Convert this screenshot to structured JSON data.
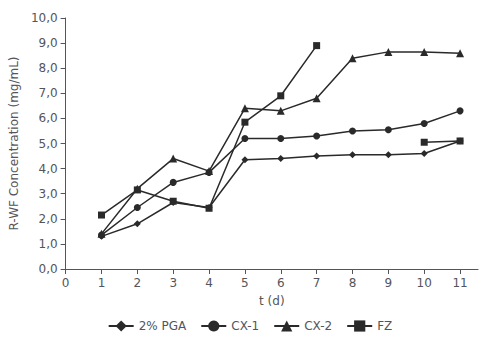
{
  "chart_data": {
    "type": "line",
    "x": [
      1,
      2,
      3,
      4,
      5,
      6,
      7,
      8,
      9,
      10,
      11
    ],
    "series": [
      {
        "name": "2% PGA",
        "color": "#2a2a2a",
        "marker": "diamond",
        "values": [
          1.3,
          1.8,
          2.65,
          2.45,
          4.35,
          4.4,
          4.5,
          4.55,
          4.55,
          4.6,
          5.1
        ]
      },
      {
        "name": "CX-1",
        "color": "#2a2a2a",
        "marker": "circle",
        "values": [
          1.35,
          2.45,
          3.45,
          3.85,
          5.2,
          5.2,
          5.3,
          5.5,
          5.55,
          5.8,
          6.3
        ]
      },
      {
        "name": "CX-2",
        "color": "#2a2a2a",
        "marker": "triangle",
        "values": [
          1.4,
          3.2,
          4.4,
          3.9,
          6.4,
          6.3,
          6.8,
          8.4,
          8.65,
          8.65,
          8.6
        ]
      },
      {
        "name": "FZ",
        "color": "#2a2a2a",
        "marker": "square",
        "values": [
          2.15,
          3.15,
          2.7,
          2.42,
          5.85,
          6.9,
          8.9,
          null,
          null,
          5.05,
          5.1
        ]
      }
    ],
    "xlabel": "t (d)",
    "ylabel": "R-WF Concentration (mg/mL)",
    "xlim": [
      0,
      11.5
    ],
    "ylim": [
      0,
      10
    ],
    "xticks": [
      0,
      1,
      2,
      3,
      4,
      5,
      6,
      7,
      8,
      9,
      10,
      11
    ],
    "yticks": [
      {
        "value": 0.0,
        "label": "0,0"
      },
      {
        "value": 1.0,
        "label": "1,0"
      },
      {
        "value": 2.0,
        "label": "2,0"
      },
      {
        "value": 3.0,
        "label": "3,0"
      },
      {
        "value": 4.0,
        "label": "4,0"
      },
      {
        "value": 5.0,
        "label": "5,0"
      },
      {
        "value": 6.0,
        "label": "6,0"
      },
      {
        "value": 7.0,
        "label": "7,0"
      },
      {
        "value": 8.0,
        "label": "8,0"
      },
      {
        "value": 9.0,
        "label": "9,0"
      },
      {
        "value": 10.0,
        "label": "10,0"
      }
    ],
    "grid": false,
    "legend": "bottom"
  }
}
